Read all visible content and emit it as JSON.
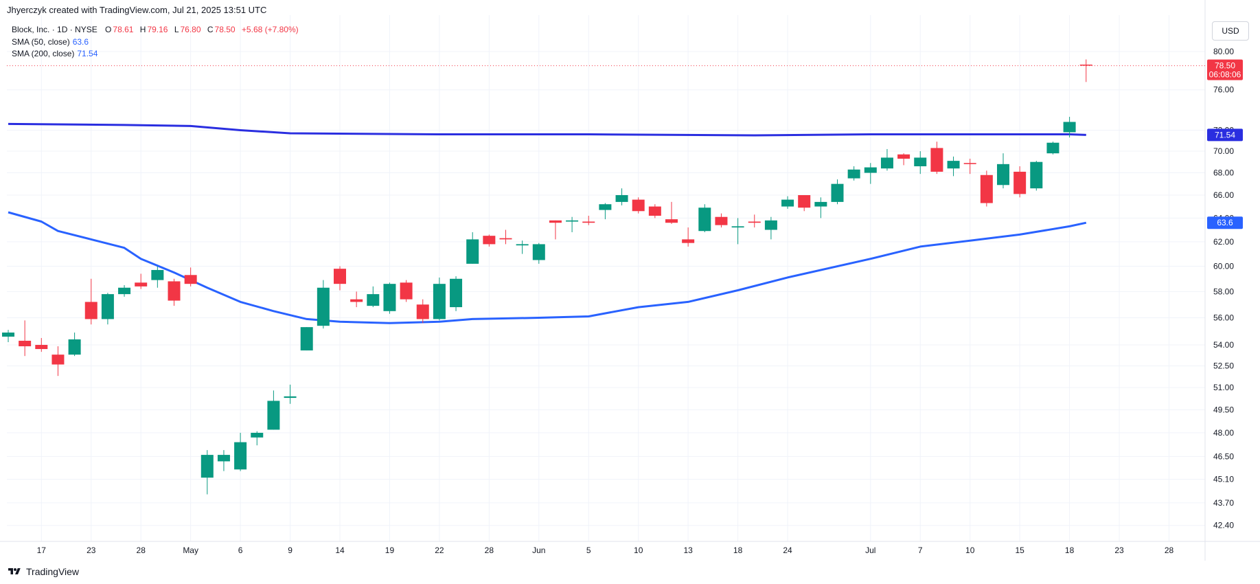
{
  "header": {
    "attribution": "Jhyerczyk created with TradingView.com, Jul 21, 2025 13:51 UTC"
  },
  "legend": {
    "symbol": "Block, Inc. · 1D · NYSE",
    "open_label": "O",
    "open": "78.61",
    "high_label": "H",
    "high": "79.16",
    "low_label": "L",
    "low": "76.80",
    "close_label": "C",
    "close": "78.50",
    "change": "+5.68 (+7.80%)",
    "sma50_label": "SMA (50, close)",
    "sma50_value": "63.6",
    "sma200_label": "SMA (200, close)",
    "sma200_value": "71.54"
  },
  "currency_button": "USD",
  "brand": {
    "name": "TradingView"
  },
  "colors": {
    "up": "#089981",
    "down": "#f23645",
    "sma200": "#2a2ee0",
    "sma50": "#2962ff",
    "grid": "#f0f3fa"
  },
  "chart_data": {
    "type": "candlestick",
    "title": "",
    "y_scale": "log",
    "ylim": [
      41.5,
      84.0
    ],
    "y_ticks": [
      "42.40",
      "43.70",
      "45.10",
      "46.50",
      "48.00",
      "49.50",
      "51.00",
      "52.50",
      "54.00",
      "56.00",
      "58.00",
      "60.00",
      "62.00",
      "64.00",
      "66.00",
      "68.00",
      "70.00",
      "72.00",
      "76.00",
      "80.00"
    ],
    "x_labels": [
      {
        "label": "17",
        "date": "2025-04-17"
      },
      {
        "label": "23",
        "date": "2025-04-23"
      },
      {
        "label": "28",
        "date": "2025-04-28"
      },
      {
        "label": "May",
        "date": "2025-05-01"
      },
      {
        "label": "6",
        "date": "2025-05-06"
      },
      {
        "label": "9",
        "date": "2025-05-09"
      },
      {
        "label": "14",
        "date": "2025-05-14"
      },
      {
        "label": "19",
        "date": "2025-05-19"
      },
      {
        "label": "22",
        "date": "2025-05-22"
      },
      {
        "label": "28",
        "date": "2025-05-28"
      },
      {
        "label": "Jun",
        "date": "2025-06-02"
      },
      {
        "label": "5",
        "date": "2025-06-05"
      },
      {
        "label": "10",
        "date": "2025-06-10"
      },
      {
        "label": "13",
        "date": "2025-06-13"
      },
      {
        "label": "18",
        "date": "2025-06-18"
      },
      {
        "label": "24",
        "date": "2025-06-24"
      },
      {
        "label": "Jul",
        "date": "2025-07-01"
      },
      {
        "label": "7",
        "date": "2025-07-07"
      },
      {
        "label": "10",
        "date": "2025-07-10"
      },
      {
        "label": "15",
        "date": "2025-07-15"
      },
      {
        "label": "18",
        "date": "2025-07-18"
      },
      {
        "label": "23",
        "date": "2025-07-23"
      },
      {
        "label": "28",
        "date": "2025-07-28"
      }
    ],
    "candles": [
      {
        "date": "2025-04-15",
        "o": 54.6,
        "h": 55.1,
        "l": 54.2,
        "c": 54.9
      },
      {
        "date": "2025-04-16",
        "o": 54.3,
        "h": 55.8,
        "l": 53.2,
        "c": 53.9
      },
      {
        "date": "2025-04-17",
        "o": 54.0,
        "h": 54.5,
        "l": 53.5,
        "c": 53.7
      },
      {
        "date": "2025-04-21",
        "o": 53.3,
        "h": 53.9,
        "l": 51.8,
        "c": 52.6
      },
      {
        "date": "2025-04-22",
        "o": 53.3,
        "h": 54.9,
        "l": 53.2,
        "c": 54.4
      },
      {
        "date": "2025-04-23",
        "o": 57.2,
        "h": 59.0,
        "l": 55.5,
        "c": 55.9
      },
      {
        "date": "2025-04-24",
        "o": 55.9,
        "h": 57.9,
        "l": 55.5,
        "c": 57.8
      },
      {
        "date": "2025-04-25",
        "o": 57.8,
        "h": 58.5,
        "l": 57.6,
        "c": 58.3
      },
      {
        "date": "2025-04-28",
        "o": 58.7,
        "h": 59.4,
        "l": 58.2,
        "c": 58.4
      },
      {
        "date": "2025-04-29",
        "o": 58.9,
        "h": 60.0,
        "l": 58.3,
        "c": 59.7
      },
      {
        "date": "2025-04-30",
        "o": 58.8,
        "h": 59.0,
        "l": 56.9,
        "c": 57.3
      },
      {
        "date": "2025-05-01",
        "o": 59.3,
        "h": 59.9,
        "l": 58.4,
        "c": 58.6
      },
      {
        "date": "2025-05-02",
        "o": 45.2,
        "h": 46.9,
        "l": 44.2,
        "c": 46.6
      },
      {
        "date": "2025-05-05",
        "o": 46.2,
        "h": 46.9,
        "l": 45.6,
        "c": 46.6
      },
      {
        "date": "2025-05-06",
        "o": 45.7,
        "h": 48.0,
        "l": 45.6,
        "c": 47.4
      },
      {
        "date": "2025-05-07",
        "o": 47.7,
        "h": 48.1,
        "l": 47.2,
        "c": 48.0
      },
      {
        "date": "2025-05-08",
        "o": 48.2,
        "h": 50.8,
        "l": 48.2,
        "c": 50.1
      },
      {
        "date": "2025-05-09",
        "o": 50.3,
        "h": 51.2,
        "l": 49.9,
        "c": 50.4
      },
      {
        "date": "2025-05-12",
        "o": 53.6,
        "h": 55.3,
        "l": 53.6,
        "c": 55.3
      },
      {
        "date": "2025-05-13",
        "o": 55.4,
        "h": 58.9,
        "l": 55.2,
        "c": 58.3
      },
      {
        "date": "2025-05-14",
        "o": 59.8,
        "h": 60.0,
        "l": 58.1,
        "c": 58.6
      },
      {
        "date": "2025-05-15",
        "o": 57.4,
        "h": 58.0,
        "l": 56.8,
        "c": 57.2
      },
      {
        "date": "2025-05-16",
        "o": 56.9,
        "h": 58.4,
        "l": 56.8,
        "c": 57.8
      },
      {
        "date": "2025-05-19",
        "o": 56.5,
        "h": 58.7,
        "l": 56.3,
        "c": 58.6
      },
      {
        "date": "2025-05-20",
        "o": 58.7,
        "h": 58.9,
        "l": 57.2,
        "c": 57.4
      },
      {
        "date": "2025-05-21",
        "o": 57.0,
        "h": 57.4,
        "l": 55.6,
        "c": 55.9
      },
      {
        "date": "2025-05-22",
        "o": 55.9,
        "h": 59.1,
        "l": 55.8,
        "c": 58.6
      },
      {
        "date": "2025-05-23",
        "o": 56.8,
        "h": 59.2,
        "l": 56.5,
        "c": 59.0
      },
      {
        "date": "2025-05-27",
        "o": 60.2,
        "h": 62.8,
        "l": 60.2,
        "c": 62.2
      },
      {
        "date": "2025-05-28",
        "o": 62.5,
        "h": 62.6,
        "l": 61.6,
        "c": 61.8
      },
      {
        "date": "2025-05-29",
        "o": 62.3,
        "h": 63.0,
        "l": 61.8,
        "c": 62.2
      },
      {
        "date": "2025-05-30",
        "o": 61.7,
        "h": 62.1,
        "l": 61.0,
        "c": 61.8
      },
      {
        "date": "2025-06-02",
        "o": 60.5,
        "h": 61.9,
        "l": 60.2,
        "c": 61.8
      },
      {
        "date": "2025-06-03",
        "o": 63.8,
        "h": 63.8,
        "l": 62.2,
        "c": 63.6
      },
      {
        "date": "2025-06-04",
        "o": 63.7,
        "h": 64.1,
        "l": 62.8,
        "c": 63.8
      },
      {
        "date": "2025-06-05",
        "o": 63.7,
        "h": 64.2,
        "l": 63.4,
        "c": 63.6
      },
      {
        "date": "2025-06-06",
        "o": 64.7,
        "h": 65.3,
        "l": 63.9,
        "c": 65.2
      },
      {
        "date": "2025-06-09",
        "o": 65.4,
        "h": 66.6,
        "l": 65.1,
        "c": 66.0
      },
      {
        "date": "2025-06-10",
        "o": 65.6,
        "h": 65.8,
        "l": 64.4,
        "c": 64.6
      },
      {
        "date": "2025-06-11",
        "o": 65.0,
        "h": 65.2,
        "l": 64.0,
        "c": 64.2
      },
      {
        "date": "2025-06-12",
        "o": 63.9,
        "h": 65.4,
        "l": 63.5,
        "c": 63.6
      },
      {
        "date": "2025-06-13",
        "o": 62.2,
        "h": 63.2,
        "l": 61.6,
        "c": 61.9
      },
      {
        "date": "2025-06-16",
        "o": 62.9,
        "h": 65.2,
        "l": 62.8,
        "c": 64.9
      },
      {
        "date": "2025-06-17",
        "o": 64.1,
        "h": 64.4,
        "l": 63.2,
        "c": 63.4
      },
      {
        "date": "2025-06-18",
        "o": 63.2,
        "h": 64.0,
        "l": 61.8,
        "c": 63.3
      },
      {
        "date": "2025-06-20",
        "o": 63.7,
        "h": 64.3,
        "l": 63.2,
        "c": 63.6
      },
      {
        "date": "2025-06-23",
        "o": 63.0,
        "h": 64.1,
        "l": 62.2,
        "c": 63.8
      },
      {
        "date": "2025-06-24",
        "o": 65.0,
        "h": 65.9,
        "l": 64.8,
        "c": 65.6
      },
      {
        "date": "2025-06-25",
        "o": 66.0,
        "h": 66.0,
        "l": 64.6,
        "c": 64.9
      },
      {
        "date": "2025-06-26",
        "o": 65.0,
        "h": 65.8,
        "l": 64.0,
        "c": 65.4
      },
      {
        "date": "2025-06-27",
        "o": 65.4,
        "h": 67.4,
        "l": 65.2,
        "c": 67.0
      },
      {
        "date": "2025-06-30",
        "o": 67.5,
        "h": 68.6,
        "l": 67.3,
        "c": 68.3
      },
      {
        "date": "2025-07-01",
        "o": 68.0,
        "h": 68.9,
        "l": 67.0,
        "c": 68.5
      },
      {
        "date": "2025-07-02",
        "o": 68.4,
        "h": 70.2,
        "l": 68.2,
        "c": 69.4
      },
      {
        "date": "2025-07-03",
        "o": 69.7,
        "h": 69.8,
        "l": 68.7,
        "c": 69.3
      },
      {
        "date": "2025-07-07",
        "o": 68.6,
        "h": 70.0,
        "l": 67.9,
        "c": 69.4
      },
      {
        "date": "2025-07-08",
        "o": 70.3,
        "h": 70.9,
        "l": 67.9,
        "c": 68.1
      },
      {
        "date": "2025-07-09",
        "o": 68.4,
        "h": 69.5,
        "l": 67.7,
        "c": 69.1
      },
      {
        "date": "2025-07-10",
        "o": 68.9,
        "h": 69.3,
        "l": 67.9,
        "c": 68.8
      },
      {
        "date": "2025-07-11",
        "o": 67.8,
        "h": 68.2,
        "l": 65.0,
        "c": 65.3
      },
      {
        "date": "2025-07-14",
        "o": 66.9,
        "h": 69.8,
        "l": 66.6,
        "c": 68.8
      },
      {
        "date": "2025-07-15",
        "o": 68.1,
        "h": 68.6,
        "l": 65.8,
        "c": 66.1
      },
      {
        "date": "2025-07-16",
        "o": 66.6,
        "h": 69.1,
        "l": 66.4,
        "c": 69.0
      },
      {
        "date": "2025-07-17",
        "o": 69.8,
        "h": 70.9,
        "l": 69.7,
        "c": 70.8
      },
      {
        "date": "2025-07-18",
        "o": 71.8,
        "h": 73.3,
        "l": 71.3,
        "c": 72.8
      },
      {
        "date": "2025-07-21",
        "o": 78.61,
        "h": 79.16,
        "l": 76.8,
        "c": 78.5
      }
    ],
    "sma200": {
      "name": "SMA (200, close)",
      "points": [
        [
          "2025-04-15",
          72.6
        ],
        [
          "2025-04-25",
          72.5
        ],
        [
          "2025-05-01",
          72.4
        ],
        [
          "2025-05-06",
          72.0
        ],
        [
          "2025-05-09",
          71.7
        ],
        [
          "2025-05-22",
          71.6
        ],
        [
          "2025-06-05",
          71.6
        ],
        [
          "2025-06-20",
          71.5
        ],
        [
          "2025-07-01",
          71.6
        ],
        [
          "2025-07-10",
          71.6
        ],
        [
          "2025-07-18",
          71.6
        ],
        [
          "2025-07-21",
          71.54
        ]
      ]
    },
    "sma50": {
      "name": "SMA (50, close)",
      "points": [
        [
          "2025-04-15",
          64.5
        ],
        [
          "2025-04-17",
          63.7
        ],
        [
          "2025-04-21",
          62.9
        ],
        [
          "2025-04-23",
          62.2
        ],
        [
          "2025-04-25",
          61.5
        ],
        [
          "2025-04-28",
          60.6
        ],
        [
          "2025-04-30",
          59.5
        ],
        [
          "2025-05-02",
          58.3
        ],
        [
          "2025-05-06",
          57.2
        ],
        [
          "2025-05-08",
          56.5
        ],
        [
          "2025-05-12",
          55.9
        ],
        [
          "2025-05-14",
          55.7
        ],
        [
          "2025-05-19",
          55.6
        ],
        [
          "2025-05-22",
          55.7
        ],
        [
          "2025-05-27",
          55.9
        ],
        [
          "2025-06-02",
          56.0
        ],
        [
          "2025-06-05",
          56.1
        ],
        [
          "2025-06-10",
          56.8
        ],
        [
          "2025-06-13",
          57.2
        ],
        [
          "2025-06-18",
          58.1
        ],
        [
          "2025-06-24",
          59.1
        ],
        [
          "2025-07-01",
          60.6
        ],
        [
          "2025-07-07",
          61.6
        ],
        [
          "2025-07-10",
          62.1
        ],
        [
          "2025-07-15",
          62.6
        ],
        [
          "2025-07-18",
          63.3
        ],
        [
          "2025-07-21",
          63.6
        ]
      ]
    },
    "price_labels": [
      {
        "value": 78.5,
        "text": "78.50",
        "sub": "06:08:06",
        "color": "#f23645"
      },
      {
        "value": 71.54,
        "text": "71.54",
        "color": "#2a2ee0"
      },
      {
        "value": 63.6,
        "text": "63.6",
        "color": "#2962ff"
      }
    ]
  }
}
